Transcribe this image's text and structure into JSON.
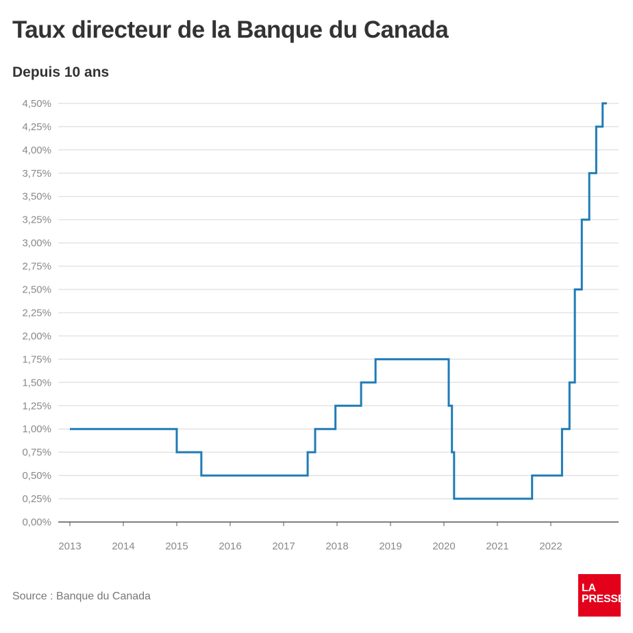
{
  "chart_data": {
    "type": "line",
    "step": true,
    "title": "Taux directeur de la Banque du Canada",
    "subtitle": "Depuis 10 ans",
    "source": "Source : Banque du Canada",
    "logo": "LA PRESSE",
    "xlabel": "",
    "ylabel": "",
    "xlim": [
      2012.8,
      2023.3
    ],
    "ylim": [
      0,
      4.5
    ],
    "x_ticks": [
      "2013",
      "2014",
      "2015",
      "2016",
      "2017",
      "2018",
      "2019",
      "2020",
      "2021",
      "2022"
    ],
    "y_ticks": [
      "0,00%",
      "0,25%",
      "0,50%",
      "0,75%",
      "1,00%",
      "1,25%",
      "1,50%",
      "1,75%",
      "2,00%",
      "2,25%",
      "2,50%",
      "2,75%",
      "3,00%",
      "3,25%",
      "3,50%",
      "3,75%",
      "4,00%",
      "4,25%",
      "4,50%"
    ],
    "grid": true,
    "line_color": "#1f7bb6",
    "points": [
      {
        "x": 2013.0,
        "y": 1.0
      },
      {
        "x": 2015.0,
        "y": 0.75
      },
      {
        "x": 2015.46,
        "y": 0.5
      },
      {
        "x": 2017.45,
        "y": 0.75
      },
      {
        "x": 2017.59,
        "y": 1.0
      },
      {
        "x": 2017.97,
        "y": 1.25
      },
      {
        "x": 2018.45,
        "y": 1.5
      },
      {
        "x": 2018.72,
        "y": 1.75
      },
      {
        "x": 2020.09,
        "y": 1.25
      },
      {
        "x": 2020.15,
        "y": 0.75
      },
      {
        "x": 2020.19,
        "y": 0.25
      },
      {
        "x": 2021.65,
        "y": 0.5
      },
      {
        "x": 2022.21,
        "y": 1.0
      },
      {
        "x": 2022.35,
        "y": 1.5
      },
      {
        "x": 2022.45,
        "y": 2.5
      },
      {
        "x": 2022.58,
        "y": 3.25
      },
      {
        "x": 2022.72,
        "y": 3.75
      },
      {
        "x": 2022.85,
        "y": 4.25
      },
      {
        "x": 2022.97,
        "y": 4.5
      },
      {
        "x": 2023.05,
        "y": 4.5
      }
    ]
  }
}
